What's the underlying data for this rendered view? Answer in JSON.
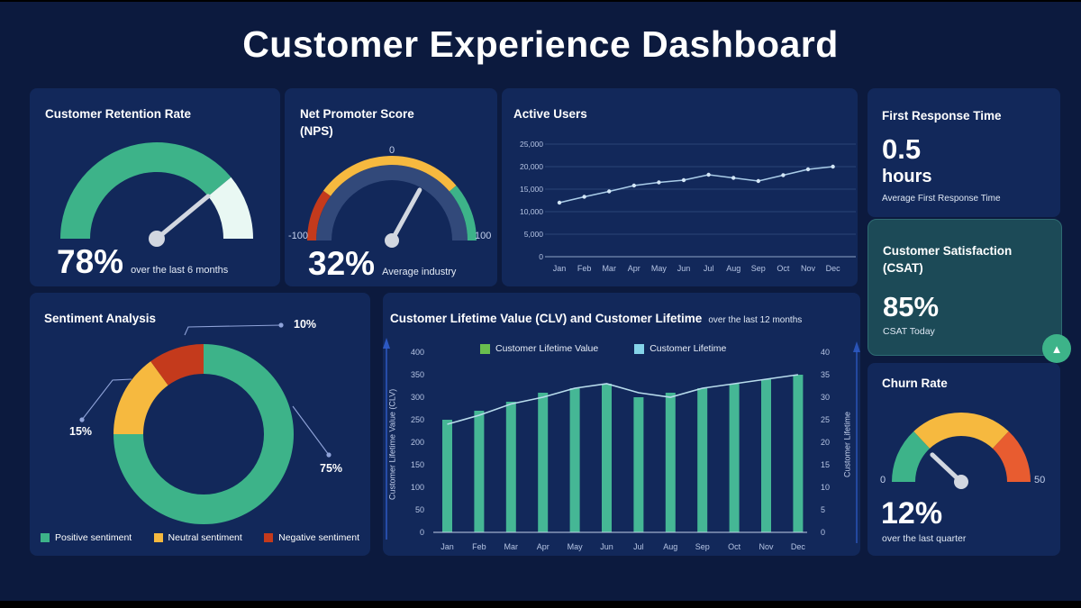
{
  "page": {
    "title": "Customer Experience Dashboard"
  },
  "colors": {
    "page_bg": "#0c1a3e",
    "card_bg": "#12285a",
    "csat_card_bg": "#1c4a57",
    "csat_card_border": "#2e6b72",
    "text": "#ffffff",
    "axis_text": "#b6c5e4",
    "gridline": "#2a4475",
    "baseline": "#8fa3c6",
    "positive": "#3db389",
    "neutral": "#f6b93f",
    "negative": "#c43a1c",
    "mint": "#e9f8f3",
    "churn_red": "#e85c30",
    "nps_track": "#32497a",
    "needle": "#d2d7e0",
    "line_series": "#a9cce8",
    "line_dot": "#d3e6f6",
    "clv_bar": "#45b795",
    "clv_line": "#b8dcec",
    "clv_legend_bar": "#6abf4e",
    "clv_legend_line": "#85d4e8",
    "axis_arrow": "#2e5bc7",
    "callout": "#8fa3d9",
    "badge_green": "#3db389"
  },
  "chart_data": [
    {
      "id": "retention",
      "type": "gauge",
      "title": "Customer Retention Rate",
      "min": 0,
      "max": 100,
      "value": 78,
      "value_label": "78%",
      "caption": "over the last 6 months",
      "segments": [
        {
          "from": 0,
          "to": 78,
          "color_key": "positive"
        },
        {
          "from": 78,
          "to": 100,
          "color_key": "mint"
        }
      ]
    },
    {
      "id": "nps",
      "type": "gauge",
      "title": "Net Promoter Score (NPS)",
      "min": -100,
      "max": 100,
      "value": 32,
      "value_label": "32%",
      "caption": "Average industry",
      "axis_labels": {
        "left": "-100",
        "top": "0",
        "right": "100"
      },
      "segments": [
        {
          "from": -100,
          "to": -60,
          "color_key": "negative"
        },
        {
          "from": -60,
          "to": 55,
          "color_key": "neutral"
        },
        {
          "from": 55,
          "to": 100,
          "color_key": "positive"
        }
      ]
    },
    {
      "id": "active_users",
      "type": "line",
      "title": "Active Users",
      "categories": [
        "Jan",
        "Feb",
        "Mar",
        "Apr",
        "May",
        "Jun",
        "Jul",
        "Aug",
        "Sep",
        "Oct",
        "Nov",
        "Dec"
      ],
      "values": [
        12000,
        13300,
        14500,
        15800,
        16500,
        17000,
        18200,
        17500,
        16800,
        18100,
        19400,
        20000
      ],
      "ylim": [
        0,
        25000
      ],
      "yticks": [
        0,
        5000,
        10000,
        15000,
        20000,
        25000
      ],
      "ytick_labels": [
        "0",
        "5,000",
        "10,000",
        "15,000",
        "20,000",
        "25,000"
      ],
      "grid": true,
      "legend": "none"
    },
    {
      "id": "first_response",
      "type": "kpi",
      "title": "First Response Time",
      "value": "0.5",
      "unit": "hours",
      "caption": "Average First Response Time"
    },
    {
      "id": "csat",
      "type": "kpi",
      "title": "Customer Satisfaction (CSAT)",
      "value": "85%",
      "caption": "CSAT Today",
      "trend_icon": "up-triangle",
      "trend_glyph": "▲"
    },
    {
      "id": "sentiment",
      "type": "pie",
      "title": "Sentiment Analysis",
      "slices": [
        {
          "label": "Positive sentiment",
          "value": 75,
          "value_label": "75%",
          "color_key": "positive"
        },
        {
          "label": "Neutral sentiment",
          "value": 15,
          "value_label": "15%",
          "color_key": "neutral"
        },
        {
          "label": "Negative sentiment",
          "value": 10,
          "value_label": "10%",
          "color_key": "negative"
        }
      ]
    },
    {
      "id": "clv",
      "type": "bar+line",
      "title": "Customer Lifetime Value (CLV) and Customer Lifetime",
      "subtitle": "over the last 12 months",
      "categories": [
        "Jan",
        "Feb",
        "Mar",
        "Apr",
        "May",
        "Jun",
        "Jul",
        "Aug",
        "Sep",
        "Oct",
        "Nov",
        "Dec"
      ],
      "series": [
        {
          "name": "Customer Lifetime Value",
          "type": "bar",
          "axis": "left",
          "values": [
            250,
            270,
            290,
            310,
            320,
            330,
            300,
            310,
            320,
            330,
            340,
            350
          ]
        },
        {
          "name": "Customer Lifetime",
          "type": "line",
          "axis": "right",
          "values": [
            24,
            26,
            28.5,
            30,
            32,
            33,
            31,
            30,
            32,
            33,
            34,
            35
          ]
        }
      ],
      "left_axis": {
        "label": "Customer Lifetime Value (CLV)",
        "min": 0,
        "max": 400,
        "step": 50
      },
      "right_axis": {
        "label": "Customer Lifetime",
        "min": 0,
        "max": 40,
        "step": 5
      },
      "legend_position": "top"
    },
    {
      "id": "churn",
      "type": "gauge",
      "title": "Churn Rate",
      "min": 0,
      "max": 50,
      "value": 12,
      "value_label": "12%",
      "caption": "over the last quarter",
      "axis_labels": {
        "left": "0",
        "right": "50"
      },
      "segments": [
        {
          "from": 0,
          "to": 13,
          "color_key": "positive"
        },
        {
          "from": 13,
          "to": 37,
          "color_key": "neutral"
        },
        {
          "from": 37,
          "to": 50,
          "color_key": "churn_red"
        }
      ]
    }
  ]
}
